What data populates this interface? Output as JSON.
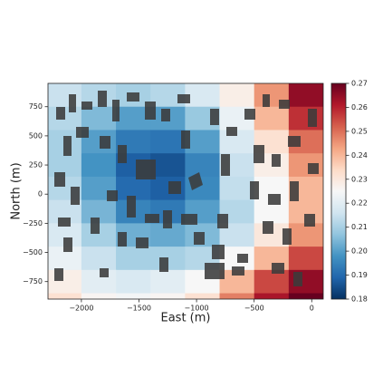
{
  "chart_data": {
    "type": "contour",
    "xlabel": "East (m)",
    "ylabel": "North (m)",
    "xlim": [
      -2290,
      100
    ],
    "ylim": [
      -900,
      950
    ],
    "xticks": [
      {
        "value": -2000,
        "label": "−2000"
      },
      {
        "value": -1500,
        "label": "−1500"
      },
      {
        "value": -1000,
        "label": "−1000"
      },
      {
        "value": -500,
        "label": "−500"
      },
      0
    ],
    "yticks": [
      {
        "value": -750,
        "label": "−750"
      },
      {
        "value": -500,
        "label": "−500"
      },
      {
        "value": -250,
        "label": "−250"
      },
      0,
      250,
      500,
      750
    ],
    "x": [
      -2150,
      -1850,
      -1550,
      -1250,
      -950,
      -650,
      -350,
      -50
    ],
    "y": [
      850,
      650,
      450,
      250,
      50,
      -150,
      -350,
      -550,
      -750,
      -950
    ],
    "z": [
      [
        0.215,
        0.212,
        0.21,
        0.212,
        0.218,
        0.228,
        0.245,
        0.265
      ],
      [
        0.212,
        0.205,
        0.2,
        0.2,
        0.208,
        0.222,
        0.24,
        0.258
      ],
      [
        0.21,
        0.2,
        0.193,
        0.192,
        0.2,
        0.218,
        0.232,
        0.25
      ],
      [
        0.21,
        0.198,
        0.188,
        0.186,
        0.195,
        0.215,
        0.228,
        0.245
      ],
      [
        0.212,
        0.2,
        0.19,
        0.188,
        0.196,
        0.214,
        0.225,
        0.24
      ],
      [
        0.215,
        0.204,
        0.195,
        0.193,
        0.2,
        0.212,
        0.225,
        0.24
      ],
      [
        0.218,
        0.21,
        0.203,
        0.202,
        0.205,
        0.215,
        0.23,
        0.245
      ],
      [
        0.222,
        0.215,
        0.21,
        0.21,
        0.212,
        0.225,
        0.24,
        0.255
      ],
      [
        0.228,
        0.22,
        0.218,
        0.22,
        0.225,
        0.24,
        0.255,
        0.265
      ],
      [
        0.232,
        0.226,
        0.224,
        0.226,
        0.232,
        0.248,
        0.262,
        0.27
      ]
    ],
    "clim": [
      0.18,
      0.27
    ],
    "cticks": [
      0.18,
      0.19,
      {
        "value": 0.2,
        "label": "0.20"
      },
      0.21,
      0.22,
      0.23,
      0.24,
      0.25,
      0.26,
      0.27
    ],
    "colormap": [
      "#053061",
      "#2166ac",
      "#4393c3",
      "#92c5de",
      "#d1e5f0",
      "#f7f7f7",
      "#fddbc7",
      "#f4a582",
      "#d6604d",
      "#b2182b",
      "#67001f"
    ]
  }
}
